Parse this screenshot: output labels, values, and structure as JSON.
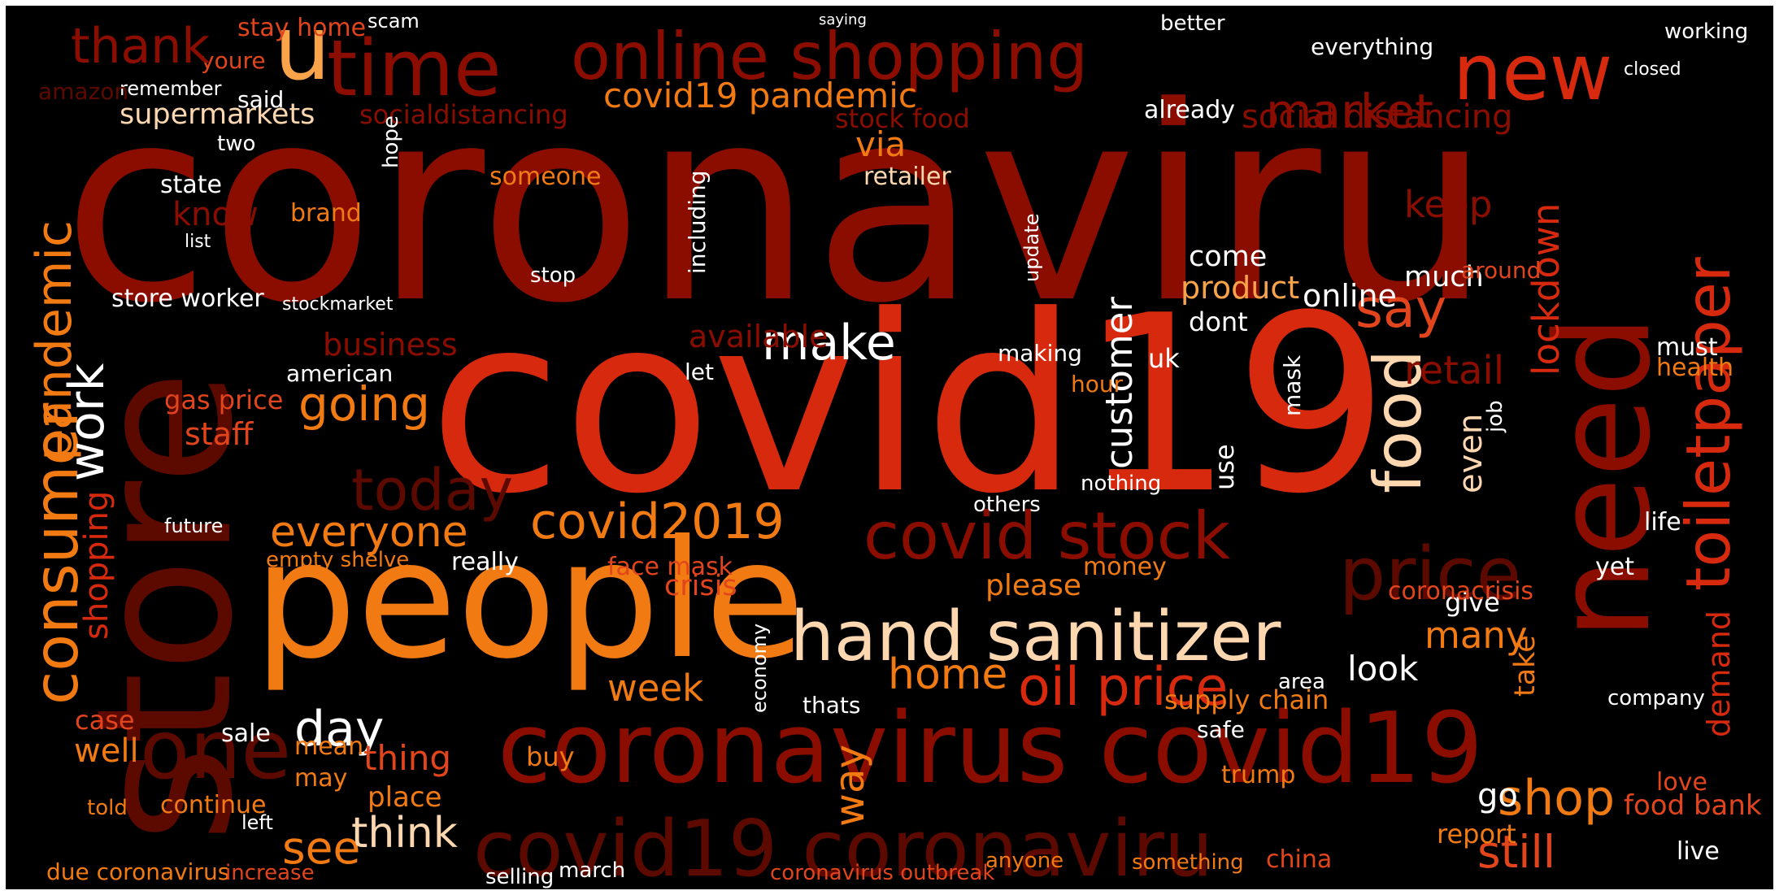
{
  "palette": {
    "background": "#000000",
    "deep_red": "#5c0a00",
    "dark_red": "#8b0d00",
    "red": "#b71a00",
    "bright_red": "#d6290e",
    "orange_red": "#e2451b",
    "orange": "#f17a12",
    "light_orange": "#f9a34a",
    "peach": "#fcd7b0",
    "white": "#ffffff"
  },
  "words": [
    {
      "text": "coronaviru",
      "color": "dark_red"
    },
    {
      "text": "covid19",
      "color": "bright_red"
    },
    {
      "text": "store",
      "color": "deep_red"
    },
    {
      "text": "people",
      "color": "orange"
    },
    {
      "text": "coronavirus covid19",
      "color": "dark_red"
    },
    {
      "text": "covid19 coronaviru",
      "color": "deep_red"
    },
    {
      "text": "need",
      "color": "dark_red"
    },
    {
      "text": "online shopping",
      "color": "dark_red"
    },
    {
      "text": "time",
      "color": "dark_red"
    },
    {
      "text": "u",
      "color": "light_orange"
    },
    {
      "text": "new",
      "color": "bright_red"
    },
    {
      "text": "hand sanitizer",
      "color": "peach"
    },
    {
      "text": "covid stock",
      "color": "dark_red"
    },
    {
      "text": "food",
      "color": "peach"
    },
    {
      "text": "price",
      "color": "deep_red"
    },
    {
      "text": "toiletpaper",
      "color": "bright_red"
    },
    {
      "text": "consumer",
      "color": "orange"
    },
    {
      "text": "pandemic",
      "color": "orange"
    },
    {
      "text": "covid19 pandemic",
      "color": "orange"
    },
    {
      "text": "covid2019",
      "color": "orange"
    },
    {
      "text": "oil price",
      "color": "bright_red"
    },
    {
      "text": "one",
      "color": "deep_red"
    },
    {
      "text": "make",
      "color": "white"
    },
    {
      "text": "customer",
      "color": "white"
    },
    {
      "text": "work",
      "color": "white"
    },
    {
      "text": "going",
      "color": "orange"
    },
    {
      "text": "everyone",
      "color": "orange"
    },
    {
      "text": "today",
      "color": "deep_red"
    },
    {
      "text": "day",
      "color": "white"
    },
    {
      "text": "see",
      "color": "orange"
    },
    {
      "text": "think",
      "color": "peach"
    },
    {
      "text": "say",
      "color": "orange_red"
    },
    {
      "text": "lockdown",
      "color": "bright_red"
    },
    {
      "text": "shop",
      "color": "orange"
    },
    {
      "text": "still",
      "color": "orange_red"
    },
    {
      "text": "market",
      "color": "dark_red"
    },
    {
      "text": "supermarkets",
      "color": "peach"
    },
    {
      "text": "week",
      "color": "orange"
    },
    {
      "text": "home",
      "color": "orange"
    },
    {
      "text": "many",
      "color": "orange"
    },
    {
      "text": "way",
      "color": "orange"
    },
    {
      "text": "even",
      "color": "peach"
    },
    {
      "text": "supply chain",
      "color": "orange"
    },
    {
      "text": "look",
      "color": "white"
    },
    {
      "text": "please",
      "color": "orange"
    },
    {
      "text": "demand",
      "color": "bright_red"
    },
    {
      "text": "shopping",
      "color": "bright_red"
    },
    {
      "text": "socialdistancing",
      "color": "dark_red"
    },
    {
      "text": "social distancing",
      "color": "dark_red"
    },
    {
      "text": "retail",
      "color": "dark_red"
    },
    {
      "text": "keep",
      "color": "dark_red"
    },
    {
      "text": "know",
      "color": "dark_red"
    },
    {
      "text": "staff",
      "color": "orange_red"
    },
    {
      "text": "stock food",
      "color": "dark_red"
    },
    {
      "text": "via",
      "color": "orange"
    },
    {
      "text": "already",
      "color": "white"
    },
    {
      "text": "everything",
      "color": "white"
    },
    {
      "text": "product",
      "color": "light_orange"
    },
    {
      "text": "online",
      "color": "white"
    },
    {
      "text": "stay home",
      "color": "orange_red"
    },
    {
      "text": "youre",
      "color": "orange_red"
    },
    {
      "text": "thank",
      "color": "dark_red"
    },
    {
      "text": "state",
      "color": "white"
    },
    {
      "text": "store worker",
      "color": "white"
    },
    {
      "text": "brand",
      "color": "orange"
    },
    {
      "text": "retailer",
      "color": "peach"
    },
    {
      "text": "someone",
      "color": "orange"
    },
    {
      "text": "much",
      "color": "white"
    },
    {
      "text": "come",
      "color": "white"
    },
    {
      "text": "dont",
      "color": "white"
    },
    {
      "text": "uk",
      "color": "white"
    },
    {
      "text": "mask",
      "color": "white"
    },
    {
      "text": "hope",
      "color": "white"
    },
    {
      "text": "really",
      "color": "white"
    },
    {
      "text": "nothing",
      "color": "white"
    },
    {
      "text": "use",
      "color": "white"
    },
    {
      "text": "gas price",
      "color": "orange_red"
    },
    {
      "text": "mean",
      "color": "orange"
    },
    {
      "text": "may",
      "color": "orange"
    },
    {
      "text": "sale",
      "color": "white"
    },
    {
      "text": "continue",
      "color": "orange"
    },
    {
      "text": "told",
      "color": "orange"
    },
    {
      "text": "case",
      "color": "orange_red"
    },
    {
      "text": "well",
      "color": "orange"
    },
    {
      "text": "thing",
      "color": "orange_red"
    },
    {
      "text": "place",
      "color": "orange"
    },
    {
      "text": "buy",
      "color": "orange"
    },
    {
      "text": "trump",
      "color": "orange"
    },
    {
      "text": "go",
      "color": "white"
    },
    {
      "text": "report",
      "color": "orange"
    },
    {
      "text": "take",
      "color": "orange"
    },
    {
      "text": "give",
      "color": "white"
    },
    {
      "text": "coronacrisis",
      "color": "orange_red"
    },
    {
      "text": "crisis",
      "color": "orange_red"
    },
    {
      "text": "health",
      "color": "orange"
    },
    {
      "text": "must",
      "color": "white"
    },
    {
      "text": "life",
      "color": "white"
    },
    {
      "text": "yet",
      "color": "white"
    },
    {
      "text": "love",
      "color": "orange_red"
    },
    {
      "text": "live",
      "color": "white"
    },
    {
      "text": "due coronavirus",
      "color": "orange"
    },
    {
      "text": "increase",
      "color": "orange_red"
    },
    {
      "text": "coronavirus outbreak",
      "color": "orange_red"
    },
    {
      "text": "china",
      "color": "orange_red"
    },
    {
      "text": "march",
      "color": "white"
    },
    {
      "text": "anyone",
      "color": "orange"
    },
    {
      "text": "something",
      "color": "orange"
    },
    {
      "text": "selling",
      "color": "white"
    },
    {
      "text": "stop",
      "color": "white"
    },
    {
      "text": "empty shelve",
      "color": "orange"
    },
    {
      "text": "economy",
      "color": "white"
    },
    {
      "text": "face mask",
      "color": "orange_red"
    },
    {
      "text": "thats",
      "color": "white"
    },
    {
      "text": "safe",
      "color": "white"
    },
    {
      "text": "area",
      "color": "white"
    },
    {
      "text": "hour",
      "color": "orange"
    },
    {
      "text": "american",
      "color": "white"
    },
    {
      "text": "business",
      "color": "dark_red"
    },
    {
      "text": "available",
      "color": "dark_red"
    },
    {
      "text": "including",
      "color": "white"
    },
    {
      "text": "making",
      "color": "white"
    },
    {
      "text": "let",
      "color": "white"
    },
    {
      "text": "update",
      "color": "white"
    },
    {
      "text": "job",
      "color": "white"
    },
    {
      "text": "around",
      "color": "orange_red"
    },
    {
      "text": "future",
      "color": "white"
    },
    {
      "text": "left",
      "color": "white"
    },
    {
      "text": "money",
      "color": "orange"
    },
    {
      "text": "others",
      "color": "white"
    },
    {
      "text": "said",
      "color": "white"
    },
    {
      "text": "two",
      "color": "white"
    },
    {
      "text": "remember",
      "color": "white"
    },
    {
      "text": "scam",
      "color": "white"
    },
    {
      "text": "better",
      "color": "white"
    },
    {
      "text": "saying",
      "color": "white"
    },
    {
      "text": "list",
      "color": "white"
    },
    {
      "text": "stockmarket",
      "color": "white"
    },
    {
      "text": "food bank",
      "color": "orange_red"
    },
    {
      "text": "company",
      "color": "white"
    },
    {
      "text": "working",
      "color": "white"
    },
    {
      "text": "closed",
      "color": "white"
    },
    {
      "text": "amazon",
      "color": "deep_red"
    }
  ]
}
